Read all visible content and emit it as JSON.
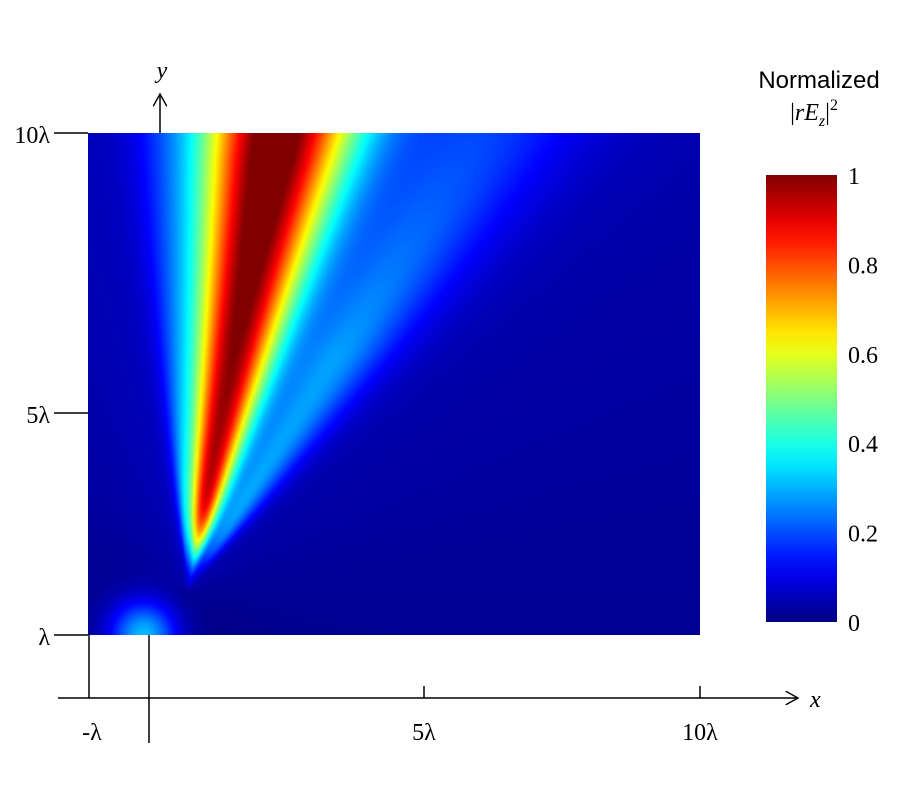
{
  "chart_data": {
    "type": "heatmap",
    "title": "",
    "xlabel": "x",
    "ylabel": "y",
    "x_range": [
      -1,
      10
    ],
    "y_range": [
      1,
      10
    ],
    "x_ticks": [
      {
        "value": -1,
        "label": "-λ"
      },
      {
        "value": 5,
        "label": "5λ"
      },
      {
        "value": 10,
        "label": "10λ"
      }
    ],
    "y_ticks": [
      {
        "value": 1,
        "label": "λ"
      },
      {
        "value": 5,
        "label": "5λ"
      },
      {
        "value": 10,
        "label": "10λ"
      }
    ],
    "extra_vertical_line_at_x": 0,
    "colormap": "jet",
    "colorbar": {
      "title_line1": "Normalized",
      "title_line2_parts": [
        "|",
        "r",
        "E",
        "z",
        "|",
        "2"
      ],
      "range": [
        0,
        1
      ],
      "ticks": [
        {
          "value": 1,
          "label": "1"
        },
        {
          "value": 0.8,
          "label": "0.8"
        },
        {
          "value": 0.6,
          "label": "0.6"
        },
        {
          "value": 0.4,
          "label": "0.4"
        },
        {
          "value": 0.2,
          "label": "0.2"
        },
        {
          "value": 0,
          "label": "0"
        }
      ]
    },
    "beam": {
      "description_values_in_wavelengths": true,
      "apex": [
        0.8,
        1.8
      ],
      "center_direction_deg_from_y": 11,
      "half_width_deg": 9,
      "peak_value": 1.0,
      "peak_y": 9.5,
      "secondary_lobe": {
        "offset_deg": 22,
        "amplitude": 0.22,
        "half_width_deg": 8
      },
      "left_lobe": {
        "offset_deg": -14,
        "amplitude": 0.15,
        "half_width_deg": 4
      },
      "near_field_spot": {
        "x": 0.0,
        "y": 1.0,
        "amplitude": 0.3,
        "radius": 0.6
      }
    },
    "grid": false,
    "legend": "none"
  }
}
